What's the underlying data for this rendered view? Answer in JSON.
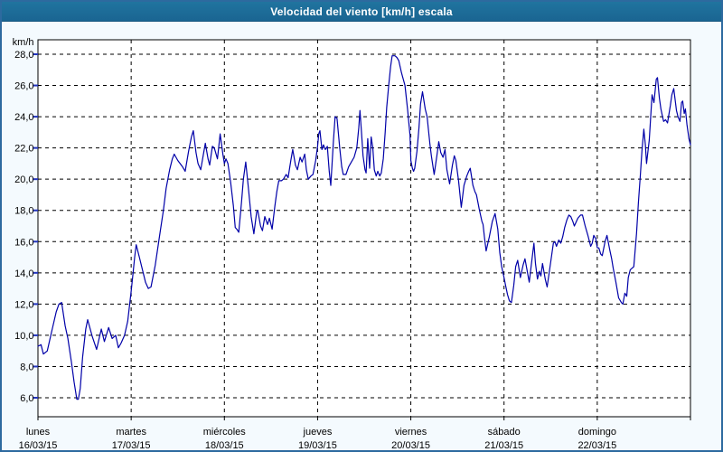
{
  "window": {
    "title": "Velocidad del viento [km/h] escala"
  },
  "chart_data": {
    "type": "line",
    "title": "Velocidad del viento [km/h] escala",
    "ylabel": "km/h",
    "xlabel": "",
    "ylim": [
      6,
      28
    ],
    "grid": "dashed",
    "legend_position": "none",
    "y_axis": {
      "unit_label": "km/h",
      "min": 6,
      "max": 28,
      "tick_step": 2,
      "tick_values": [
        28,
        26,
        24,
        22,
        20,
        18,
        16,
        14,
        12,
        10,
        8,
        6
      ],
      "tick_labels": [
        "28,0",
        "26,0",
        "24,0",
        "22,0",
        "20,0",
        "18,0",
        "16,0",
        "14,0",
        "12,0",
        "10,0",
        "8,0",
        "6,0"
      ]
    },
    "x_axis": {
      "total_hours": 168,
      "hours_per_day": 24,
      "days": [
        {
          "label": "lunes",
          "date": "16/03/15"
        },
        {
          "label": "martes",
          "date": "17/03/15"
        },
        {
          "label": "miércoles",
          "date": "18/03/15"
        },
        {
          "label": "jueves",
          "date": "19/03/15"
        },
        {
          "label": "viernes",
          "date": "20/03/15"
        },
        {
          "label": "sábado",
          "date": "21/03/15"
        },
        {
          "label": "domingo",
          "date": "22/03/15"
        }
      ]
    },
    "colors": {
      "line": "#0000a8",
      "titlebar": "#1d6d9c",
      "window_border": "#2d6a9f",
      "background": "#f4fafe",
      "plot_background": "#ffffff",
      "grid": "#000000",
      "axis_text": "#000000",
      "y_tick_marks": "#2233bb"
    },
    "series": [
      {
        "name": "Velocidad del viento",
        "unit": "km/h",
        "points": [
          [
            0,
            9.3
          ],
          [
            0.8,
            9.4
          ],
          [
            1.4,
            8.8
          ],
          [
            2.4,
            9.0
          ],
          [
            3.5,
            10.2
          ],
          [
            4.7,
            11.5
          ],
          [
            5.4,
            12.0
          ],
          [
            6.1,
            12.1
          ],
          [
            7.0,
            10.6
          ],
          [
            7.7,
            9.8
          ],
          [
            8.6,
            8.3
          ],
          [
            9.3,
            7.0
          ],
          [
            10.0,
            5.9
          ],
          [
            10.4,
            5.9
          ],
          [
            10.9,
            6.6
          ],
          [
            11.5,
            8.6
          ],
          [
            12.3,
            10.4
          ],
          [
            12.8,
            11.0
          ],
          [
            14.0,
            9.9
          ],
          [
            15.1,
            9.1
          ],
          [
            16.3,
            10.4
          ],
          [
            17.1,
            9.6
          ],
          [
            18.2,
            10.5
          ],
          [
            19.1,
            9.8
          ],
          [
            20.0,
            10.0
          ],
          [
            20.7,
            9.2
          ],
          [
            21.4,
            9.5
          ],
          [
            22.3,
            10.0
          ],
          [
            23.1,
            10.9
          ],
          [
            24.0,
            12.8
          ],
          [
            24.4,
            13.8
          ],
          [
            24.9,
            15.0
          ],
          [
            25.3,
            15.8
          ],
          [
            26.1,
            15.0
          ],
          [
            26.9,
            14.2
          ],
          [
            27.7,
            13.4
          ],
          [
            28.4,
            13.0
          ],
          [
            29.1,
            13.1
          ],
          [
            30.2,
            14.5
          ],
          [
            31.4,
            16.5
          ],
          [
            32.3,
            18.0
          ],
          [
            33.0,
            19.4
          ],
          [
            33.9,
            20.6
          ],
          [
            34.6,
            21.3
          ],
          [
            35.1,
            21.6
          ],
          [
            36.0,
            21.2
          ],
          [
            37.2,
            20.8
          ],
          [
            37.9,
            20.5
          ],
          [
            38.8,
            21.8
          ],
          [
            39.5,
            22.7
          ],
          [
            40.0,
            23.1
          ],
          [
            40.7,
            21.7
          ],
          [
            41.2,
            21.0
          ],
          [
            41.9,
            20.6
          ],
          [
            42.6,
            21.6
          ],
          [
            43.1,
            22.3
          ],
          [
            43.8,
            21.3
          ],
          [
            44.2,
            20.9
          ],
          [
            44.9,
            22.1
          ],
          [
            45.4,
            22.0
          ],
          [
            46.2,
            21.3
          ],
          [
            46.9,
            22.9
          ],
          [
            47.6,
            21.6
          ],
          [
            48.0,
            21.0
          ],
          [
            48.4,
            21.3
          ],
          [
            48.9,
            21.0
          ],
          [
            49.6,
            19.8
          ],
          [
            50.3,
            18.3
          ],
          [
            50.8,
            16.9
          ],
          [
            51.2,
            16.8
          ],
          [
            51.7,
            16.6
          ],
          [
            52.4,
            18.5
          ],
          [
            52.9,
            20.0
          ],
          [
            53.5,
            21.1
          ],
          [
            54.2,
            19.4
          ],
          [
            54.9,
            17.6
          ],
          [
            55.6,
            16.5
          ],
          [
            56.3,
            17.9
          ],
          [
            56.6,
            18.0
          ],
          [
            57.3,
            17.0
          ],
          [
            57.8,
            16.7
          ],
          [
            58.4,
            17.6
          ],
          [
            59.1,
            17.1
          ],
          [
            59.6,
            17.5
          ],
          [
            60.3,
            16.8
          ],
          [
            61.0,
            18.3
          ],
          [
            61.5,
            19.2
          ],
          [
            62.0,
            19.9
          ],
          [
            62.7,
            19.9
          ],
          [
            63.2,
            20.0
          ],
          [
            63.9,
            20.3
          ],
          [
            64.4,
            20.1
          ],
          [
            65.1,
            21.2
          ],
          [
            65.6,
            21.9
          ],
          [
            66.3,
            20.9
          ],
          [
            66.8,
            20.6
          ],
          [
            67.5,
            21.4
          ],
          [
            68.0,
            21.1
          ],
          [
            68.7,
            21.6
          ],
          [
            69.1,
            20.6
          ],
          [
            69.6,
            20.0
          ],
          [
            70.3,
            20.2
          ],
          [
            70.8,
            20.3
          ],
          [
            71.5,
            21.2
          ],
          [
            72.0,
            22.1
          ],
          [
            72.3,
            22.9
          ],
          [
            72.6,
            23.1
          ],
          [
            73.1,
            21.9
          ],
          [
            73.5,
            22.2
          ],
          [
            74.0,
            21.9
          ],
          [
            74.5,
            22.1
          ],
          [
            75.0,
            20.5
          ],
          [
            75.4,
            19.6
          ],
          [
            76.1,
            22.5
          ],
          [
            76.5,
            24.0
          ],
          [
            77.0,
            23.9
          ],
          [
            77.7,
            22.0
          ],
          [
            78.2,
            20.8
          ],
          [
            78.6,
            20.3
          ],
          [
            79.3,
            20.3
          ],
          [
            80.0,
            20.8
          ],
          [
            80.7,
            21.1
          ],
          [
            81.4,
            21.4
          ],
          [
            82.1,
            22.0
          ],
          [
            82.6,
            23.3
          ],
          [
            82.9,
            24.4
          ],
          [
            83.3,
            23.0
          ],
          [
            83.7,
            21.5
          ],
          [
            84.2,
            20.6
          ],
          [
            84.5,
            20.4
          ],
          [
            84.9,
            22.6
          ],
          [
            85.4,
            20.7
          ],
          [
            85.8,
            22.7
          ],
          [
            86.2,
            22.0
          ],
          [
            86.6,
            20.6
          ],
          [
            87.1,
            20.2
          ],
          [
            87.5,
            20.5
          ],
          [
            88.0,
            20.2
          ],
          [
            88.4,
            20.4
          ],
          [
            88.9,
            21.3
          ],
          [
            89.4,
            23.0
          ],
          [
            89.8,
            24.6
          ],
          [
            90.3,
            26.0
          ],
          [
            90.8,
            27.2
          ],
          [
            91.2,
            27.9
          ],
          [
            91.9,
            27.9
          ],
          [
            92.4,
            27.8
          ],
          [
            92.9,
            27.6
          ],
          [
            93.6,
            26.8
          ],
          [
            94.5,
            26.0
          ],
          [
            95.2,
            24.4
          ],
          [
            95.8,
            22.8
          ],
          [
            96.0,
            21.2
          ],
          [
            96.4,
            20.7
          ],
          [
            96.7,
            20.5
          ],
          [
            97.0,
            20.7
          ],
          [
            97.6,
            21.8
          ],
          [
            98.1,
            23.3
          ],
          [
            98.5,
            24.8
          ],
          [
            99.0,
            25.6
          ],
          [
            99.7,
            24.5
          ],
          [
            100.2,
            24.0
          ],
          [
            100.9,
            22.3
          ],
          [
            101.3,
            21.5
          ],
          [
            102.0,
            20.3
          ],
          [
            102.7,
            21.5
          ],
          [
            103.2,
            22.4
          ],
          [
            103.7,
            21.7
          ],
          [
            104.3,
            21.4
          ],
          [
            104.8,
            21.9
          ],
          [
            105.3,
            20.6
          ],
          [
            106.0,
            19.7
          ],
          [
            106.7,
            20.9
          ],
          [
            107.2,
            21.5
          ],
          [
            107.6,
            21.2
          ],
          [
            108.3,
            19.9
          ],
          [
            109.0,
            18.2
          ],
          [
            109.7,
            19.6
          ],
          [
            110.4,
            20.2
          ],
          [
            110.9,
            20.5
          ],
          [
            111.3,
            20.7
          ],
          [
            112.0,
            19.6
          ],
          [
            112.5,
            19.2
          ],
          [
            112.9,
            19.0
          ],
          [
            113.6,
            18.1
          ],
          [
            114.3,
            17.3
          ],
          [
            114.6,
            17.1
          ],
          [
            115.0,
            16.2
          ],
          [
            115.4,
            15.4
          ],
          [
            116.2,
            16.3
          ],
          [
            117.0,
            17.3
          ],
          [
            117.7,
            17.8
          ],
          [
            118.4,
            16.8
          ],
          [
            118.9,
            15.3
          ],
          [
            119.4,
            14.4
          ],
          [
            120.0,
            13.7
          ],
          [
            120.4,
            13.2
          ],
          [
            120.9,
            12.6
          ],
          [
            121.4,
            12.2
          ],
          [
            121.9,
            12.1
          ],
          [
            122.5,
            13.2
          ],
          [
            123.0,
            14.4
          ],
          [
            123.5,
            14.8
          ],
          [
            124.2,
            13.7
          ],
          [
            124.9,
            14.5
          ],
          [
            125.4,
            14.9
          ],
          [
            125.9,
            14.2
          ],
          [
            126.5,
            13.4
          ],
          [
            127.2,
            14.9
          ],
          [
            127.7,
            15.9
          ],
          [
            128.1,
            14.6
          ],
          [
            128.6,
            13.6
          ],
          [
            129.1,
            14.1
          ],
          [
            129.5,
            13.8
          ],
          [
            129.9,
            14.6
          ],
          [
            130.6,
            13.6
          ],
          [
            131.1,
            13.1
          ],
          [
            131.8,
            14.3
          ],
          [
            132.3,
            15.2
          ],
          [
            132.7,
            15.9
          ],
          [
            133.1,
            16.0
          ],
          [
            133.5,
            15.7
          ],
          [
            134.1,
            16.1
          ],
          [
            134.6,
            15.9
          ],
          [
            135.1,
            16.3
          ],
          [
            135.6,
            16.9
          ],
          [
            136.2,
            17.4
          ],
          [
            136.7,
            17.7
          ],
          [
            137.2,
            17.6
          ],
          [
            137.7,
            17.3
          ],
          [
            138.1,
            17.0
          ],
          [
            139.0,
            17.5
          ],
          [
            139.7,
            17.7
          ],
          [
            140.2,
            17.7
          ],
          [
            140.9,
            17.0
          ],
          [
            141.6,
            16.4
          ],
          [
            142.3,
            15.7
          ],
          [
            142.7,
            15.9
          ],
          [
            143.1,
            16.4
          ],
          [
            143.6,
            16.2
          ],
          [
            144.0,
            15.6
          ],
          [
            144.4,
            15.6
          ],
          [
            144.9,
            15.2
          ],
          [
            145.3,
            15.1
          ],
          [
            146.0,
            16.0
          ],
          [
            146.5,
            16.4
          ],
          [
            147.2,
            15.5
          ],
          [
            147.7,
            14.9
          ],
          [
            148.1,
            14.3
          ],
          [
            148.8,
            13.4
          ],
          [
            149.5,
            12.4
          ],
          [
            150.2,
            12.1
          ],
          [
            150.6,
            12.0
          ],
          [
            151.1,
            12.7
          ],
          [
            151.6,
            12.5
          ],
          [
            152.0,
            13.7
          ],
          [
            152.5,
            14.2
          ],
          [
            153.0,
            14.3
          ],
          [
            153.4,
            14.4
          ],
          [
            154.1,
            16.5
          ],
          [
            154.6,
            18.5
          ],
          [
            155.1,
            20.3
          ],
          [
            155.5,
            21.8
          ],
          [
            156.0,
            23.2
          ],
          [
            156.4,
            22.2
          ],
          [
            156.7,
            21.0
          ],
          [
            157.4,
            22.5
          ],
          [
            158.1,
            25.4
          ],
          [
            158.6,
            24.9
          ],
          [
            159.2,
            26.4
          ],
          [
            159.5,
            26.5
          ],
          [
            160.0,
            25.2
          ],
          [
            160.4,
            24.5
          ],
          [
            160.8,
            24.0
          ],
          [
            161.1,
            23.7
          ],
          [
            161.6,
            23.8
          ],
          [
            162.1,
            23.6
          ],
          [
            162.8,
            24.7
          ],
          [
            163.2,
            25.4
          ],
          [
            163.7,
            25.8
          ],
          [
            164.4,
            24.4
          ],
          [
            164.8,
            24.0
          ],
          [
            165.3,
            23.7
          ],
          [
            165.7,
            24.9
          ],
          [
            166.0,
            25.0
          ],
          [
            166.4,
            24.2
          ],
          [
            166.7,
            24.5
          ],
          [
            167.1,
            23.5
          ],
          [
            167.6,
            22.6
          ],
          [
            168.0,
            22.2
          ]
        ]
      }
    ]
  }
}
